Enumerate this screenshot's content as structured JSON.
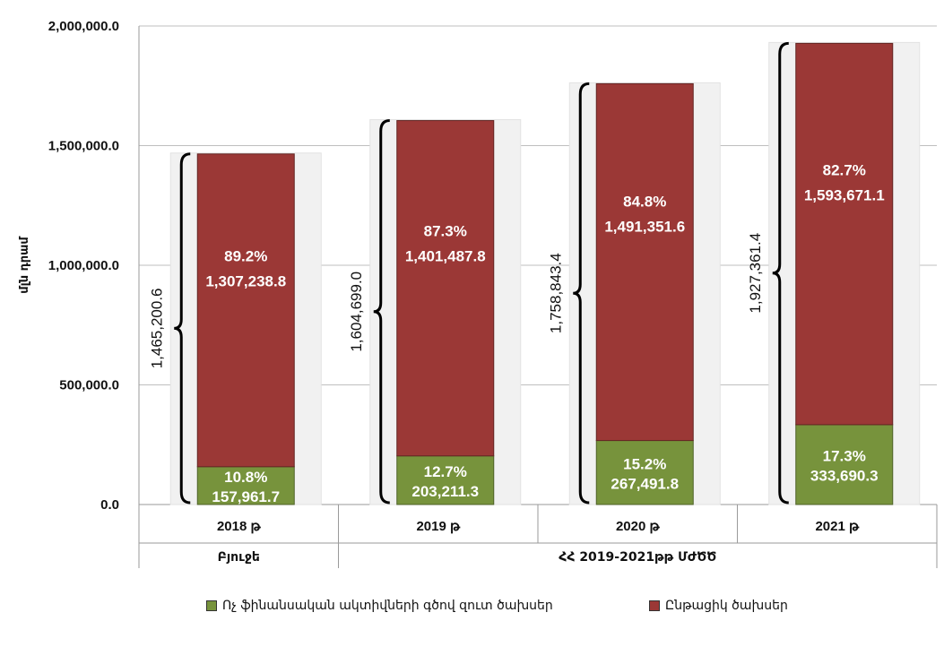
{
  "chart_data": {
    "type": "bar",
    "stacked": true,
    "ylabel": "մլն դրամ",
    "ylim": [
      0,
      2000000
    ],
    "y_ticks": [
      {
        "value": 0,
        "label": "0.0"
      },
      {
        "value": 500000,
        "label": "500,000.0"
      },
      {
        "value": 1000000,
        "label": "1,000,000.0"
      },
      {
        "value": 1500000,
        "label": "1,500,000.0"
      },
      {
        "value": 2000000,
        "label": "2,000,000.0"
      }
    ],
    "categories": [
      "2018 թ",
      "2019 թ",
      "2020 թ",
      "2021 թ"
    ],
    "groups": [
      {
        "label": "Բյուջե",
        "span": [
          0,
          0
        ]
      },
      {
        "label": "ՀՀ 2019-2021թթ ՄԺԾԾ",
        "span": [
          1,
          3
        ]
      }
    ],
    "series": [
      {
        "name": "Ոչ ֆինանսական ակտիվների գծով զուտ ծախսեր",
        "color": "#77933c",
        "values": [
          157961.7,
          203211.3,
          267491.8,
          333690.3
        ],
        "pct_labels": [
          "10.8%",
          "12.7%",
          "15.2%",
          "17.3%"
        ],
        "value_labels": [
          "157,961.7",
          "203,211.3",
          "267,491.8",
          "333,690.3"
        ]
      },
      {
        "name": "Ընթացիկ ծախսեր",
        "color": "#9b3836",
        "values": [
          1307238.8,
          1401487.8,
          1491351.6,
          1593671.1
        ],
        "pct_labels": [
          "89.2%",
          "87.3%",
          "84.8%",
          "82.7%"
        ],
        "value_labels": [
          "1,307,238.8",
          "1,401,487.8",
          "1,491,351.6",
          "1,593,671.1"
        ]
      }
    ],
    "totals": [
      1465200.6,
      1604699.0,
      1758843.4,
      1927361.4
    ],
    "total_labels": [
      "1,465,200.6",
      "1,604,699.0",
      "1,758,843.4",
      "1,927,361.4"
    ],
    "grid": true,
    "legend_position": "bottom"
  }
}
